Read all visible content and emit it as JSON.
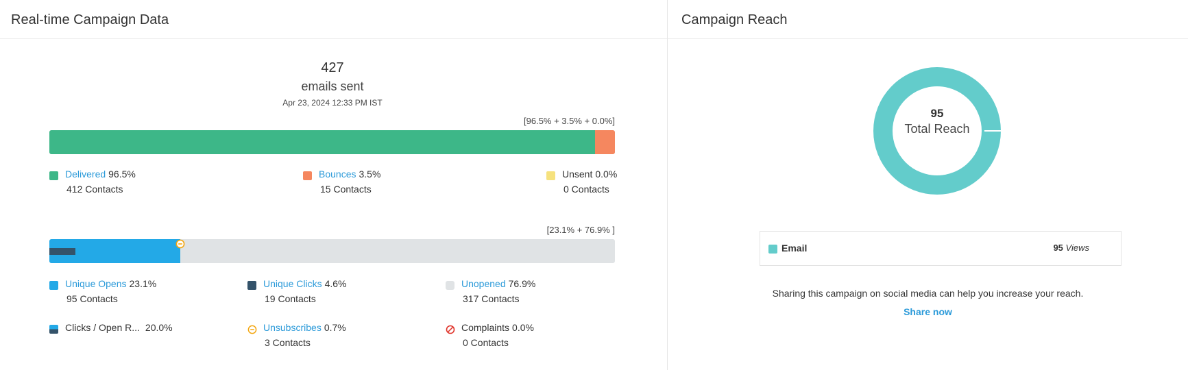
{
  "left_panel": {
    "title": "Real-time Campaign Data",
    "sent": {
      "count": "427",
      "label": "emails sent",
      "timestamp": "Apr 23, 2024 12:33 PM IST"
    },
    "delivery_bar": {
      "caption": "[96.5% + 3.5% + 0.0%]",
      "segments": [
        {
          "name": "Delivered",
          "percent": 96.5,
          "color": "#3db788"
        },
        {
          "name": "Bounces",
          "percent": 3.5,
          "color": "#f5875f"
        },
        {
          "name": "Unsent",
          "percent": 0.0,
          "color": "#f6e27e"
        }
      ]
    },
    "delivery_legend": {
      "delivered": {
        "label": "Delivered",
        "pct": "96.5%",
        "contacts": "412 Contacts",
        "color": "#3db788"
      },
      "bounces": {
        "label": "Bounces",
        "pct": "3.5%",
        "contacts": "15 Contacts",
        "color": "#f5875f"
      },
      "unsent": {
        "label": "Unsent",
        "pct": "0.0%",
        "contacts": "0 Contacts",
        "color": "#f6e27e"
      }
    },
    "engagement_bar": {
      "caption": "[23.1% + 76.9% ]",
      "opens_percent": 23.1,
      "clicks_percent": 4.6,
      "unopened_percent": 76.9,
      "open_color": "#23a9e7",
      "click_color": "#34536a",
      "unopened_color": "#e0e3e5",
      "unsubscribe_marker_icon": "minus-circle-icon"
    },
    "engagement_legend": {
      "unique_opens": {
        "label": "Unique Opens",
        "pct": "23.1%",
        "contacts": "95 Contacts",
        "color": "#23a9e7"
      },
      "unique_clicks": {
        "label": "Unique Clicks",
        "pct": "4.6%",
        "contacts": "19 Contacts",
        "color": "#34536a"
      },
      "unopened": {
        "label": "Unopened",
        "pct": "76.9%",
        "contacts": "317 Contacts",
        "color": "#e0e3e5"
      },
      "click_open_rate": {
        "label": "Clicks / Open R...",
        "pct": "20.0%"
      },
      "unsubscribes": {
        "label": "Unsubscribes",
        "pct": "0.7%",
        "contacts": "3 Contacts",
        "color": "#f3a712"
      },
      "complaints": {
        "label": "Complaints",
        "pct": "0.0%",
        "contacts": "0 Contacts",
        "color": "#e0342b"
      }
    }
  },
  "right_panel": {
    "title": "Campaign Reach",
    "donut": {
      "total": "95",
      "label": "Total Reach",
      "color": "#63cccb"
    },
    "reach_table": {
      "channel": "Email",
      "count": "95",
      "unit": "Views",
      "color": "#63cccb"
    },
    "share": {
      "message": "Sharing this campaign on social media can help you increase your reach.",
      "link_label": "Share now"
    }
  }
}
